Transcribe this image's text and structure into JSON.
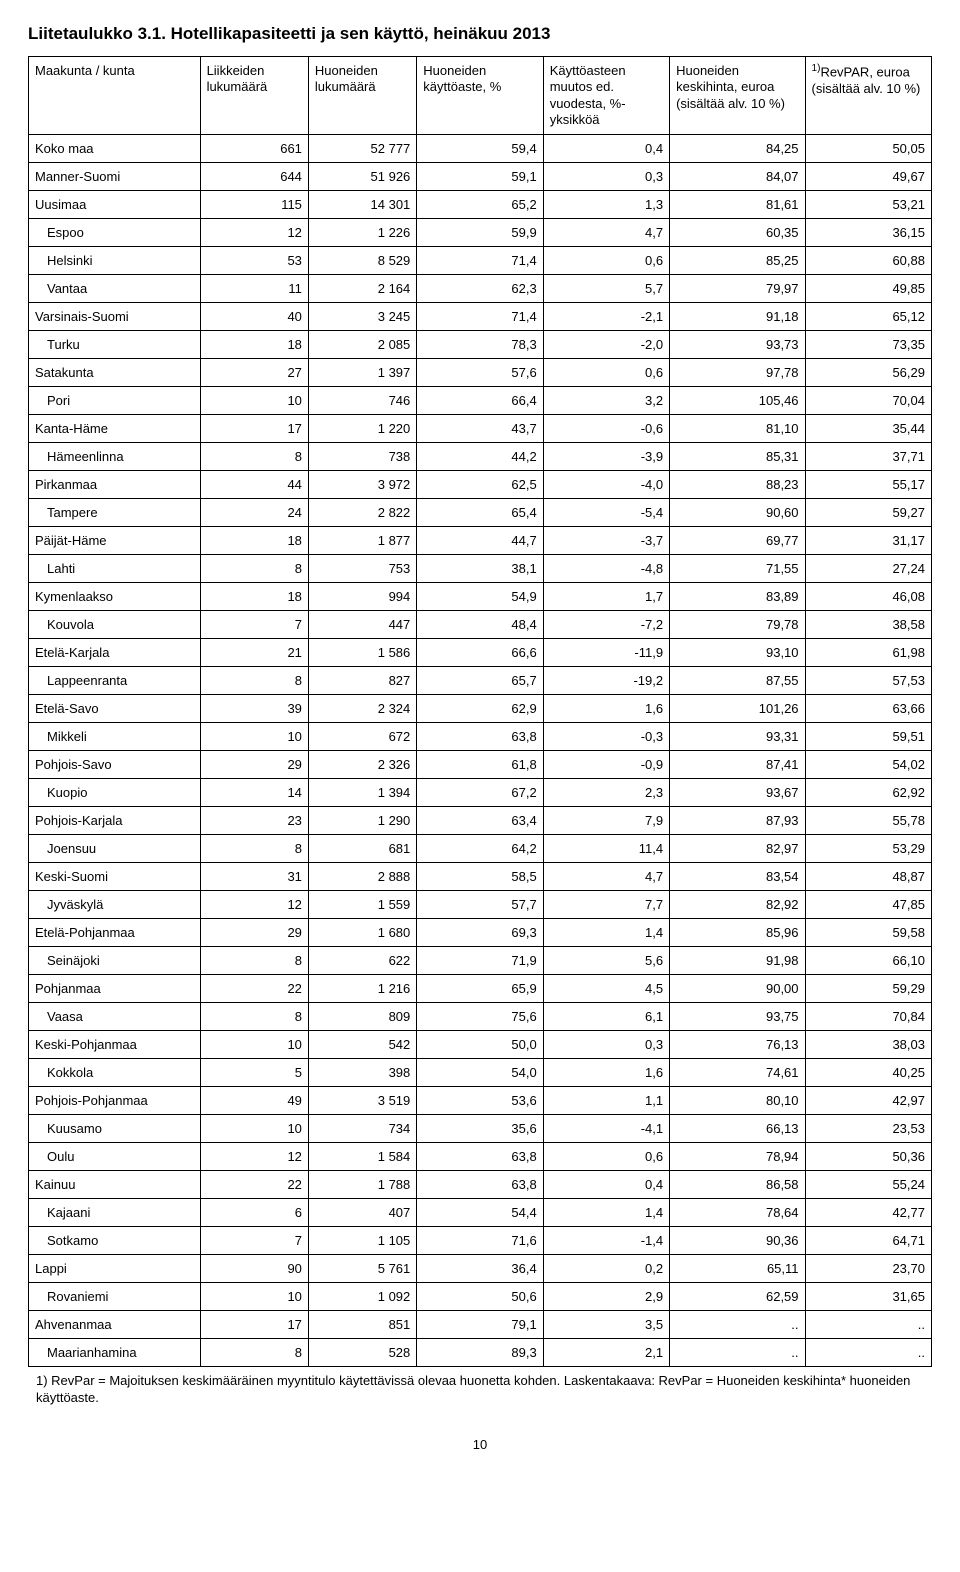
{
  "title": "Liitetaulukko 3.1. Hotellikapasiteetti ja sen käyttö, heinäkuu 2013",
  "columns": [
    "Maakunta / kunta",
    "Liikkeiden lukumäärä",
    "Huoneiden lukumäärä",
    "Huoneiden käyttöaste, %",
    "Käyttöasteen muutos ed. vuodesta, %-yksikköä",
    "Huoneiden keskihinta, euroa (sisältää alv. 10 %)",
    "RevPAR, euroa (sisältää alv. 10 %)"
  ],
  "sup": "1)",
  "rows": [
    {
      "i": 0,
      "c": [
        "Koko maa",
        "661",
        "52 777",
        "59,4",
        "0,4",
        "84,25",
        "50,05"
      ]
    },
    {
      "i": 0,
      "c": [
        "Manner-Suomi",
        "644",
        "51 926",
        "59,1",
        "0,3",
        "84,07",
        "49,67"
      ]
    },
    {
      "i": 0,
      "c": [
        "Uusimaa",
        "115",
        "14 301",
        "65,2",
        "1,3",
        "81,61",
        "53,21"
      ]
    },
    {
      "i": 1,
      "c": [
        "Espoo",
        "12",
        "1 226",
        "59,9",
        "4,7",
        "60,35",
        "36,15"
      ]
    },
    {
      "i": 1,
      "c": [
        "Helsinki",
        "53",
        "8 529",
        "71,4",
        "0,6",
        "85,25",
        "60,88"
      ]
    },
    {
      "i": 1,
      "c": [
        "Vantaa",
        "11",
        "2 164",
        "62,3",
        "5,7",
        "79,97",
        "49,85"
      ]
    },
    {
      "i": 0,
      "c": [
        "Varsinais-Suomi",
        "40",
        "3 245",
        "71,4",
        "-2,1",
        "91,18",
        "65,12"
      ]
    },
    {
      "i": 1,
      "c": [
        "Turku",
        "18",
        "2 085",
        "78,3",
        "-2,0",
        "93,73",
        "73,35"
      ]
    },
    {
      "i": 0,
      "c": [
        "Satakunta",
        "27",
        "1 397",
        "57,6",
        "0,6",
        "97,78",
        "56,29"
      ]
    },
    {
      "i": 1,
      "c": [
        "Pori",
        "10",
        "746",
        "66,4",
        "3,2",
        "105,46",
        "70,04"
      ]
    },
    {
      "i": 0,
      "c": [
        "Kanta-Häme",
        "17",
        "1 220",
        "43,7",
        "-0,6",
        "81,10",
        "35,44"
      ]
    },
    {
      "i": 1,
      "c": [
        "Hämeenlinna",
        "8",
        "738",
        "44,2",
        "-3,9",
        "85,31",
        "37,71"
      ]
    },
    {
      "i": 0,
      "c": [
        "Pirkanmaa",
        "44",
        "3 972",
        "62,5",
        "-4,0",
        "88,23",
        "55,17"
      ]
    },
    {
      "i": 1,
      "c": [
        "Tampere",
        "24",
        "2 822",
        "65,4",
        "-5,4",
        "90,60",
        "59,27"
      ]
    },
    {
      "i": 0,
      "c": [
        "Päijät-Häme",
        "18",
        "1 877",
        "44,7",
        "-3,7",
        "69,77",
        "31,17"
      ]
    },
    {
      "i": 1,
      "c": [
        "Lahti",
        "8",
        "753",
        "38,1",
        "-4,8",
        "71,55",
        "27,24"
      ]
    },
    {
      "i": 0,
      "c": [
        "Kymenlaakso",
        "18",
        "994",
        "54,9",
        "1,7",
        "83,89",
        "46,08"
      ]
    },
    {
      "i": 1,
      "c": [
        "Kouvola",
        "7",
        "447",
        "48,4",
        "-7,2",
        "79,78",
        "38,58"
      ]
    },
    {
      "i": 0,
      "c": [
        "Etelä-Karjala",
        "21",
        "1 586",
        "66,6",
        "-11,9",
        "93,10",
        "61,98"
      ]
    },
    {
      "i": 1,
      "c": [
        "Lappeenranta",
        "8",
        "827",
        "65,7",
        "-19,2",
        "87,55",
        "57,53"
      ]
    },
    {
      "i": 0,
      "c": [
        "Etelä-Savo",
        "39",
        "2 324",
        "62,9",
        "1,6",
        "101,26",
        "63,66"
      ]
    },
    {
      "i": 1,
      "c": [
        "Mikkeli",
        "10",
        "672",
        "63,8",
        "-0,3",
        "93,31",
        "59,51"
      ]
    },
    {
      "i": 0,
      "c": [
        "Pohjois-Savo",
        "29",
        "2 326",
        "61,8",
        "-0,9",
        "87,41",
        "54,02"
      ]
    },
    {
      "i": 1,
      "c": [
        "Kuopio",
        "14",
        "1 394",
        "67,2",
        "2,3",
        "93,67",
        "62,92"
      ]
    },
    {
      "i": 0,
      "c": [
        "Pohjois-Karjala",
        "23",
        "1 290",
        "63,4",
        "7,9",
        "87,93",
        "55,78"
      ]
    },
    {
      "i": 1,
      "c": [
        "Joensuu",
        "8",
        "681",
        "64,2",
        "11,4",
        "82,97",
        "53,29"
      ]
    },
    {
      "i": 0,
      "c": [
        "Keski-Suomi",
        "31",
        "2 888",
        "58,5",
        "4,7",
        "83,54",
        "48,87"
      ]
    },
    {
      "i": 1,
      "c": [
        "Jyväskylä",
        "12",
        "1 559",
        "57,7",
        "7,7",
        "82,92",
        "47,85"
      ]
    },
    {
      "i": 0,
      "c": [
        "Etelä-Pohjanmaa",
        "29",
        "1 680",
        "69,3",
        "1,4",
        "85,96",
        "59,58"
      ]
    },
    {
      "i": 1,
      "c": [
        "Seinäjoki",
        "8",
        "622",
        "71,9",
        "5,6",
        "91,98",
        "66,10"
      ]
    },
    {
      "i": 0,
      "c": [
        "Pohjanmaa",
        "22",
        "1 216",
        "65,9",
        "4,5",
        "90,00",
        "59,29"
      ]
    },
    {
      "i": 1,
      "c": [
        "Vaasa",
        "8",
        "809",
        "75,6",
        "6,1",
        "93,75",
        "70,84"
      ]
    },
    {
      "i": 0,
      "c": [
        "Keski-Pohjanmaa",
        "10",
        "542",
        "50,0",
        "0,3",
        "76,13",
        "38,03"
      ]
    },
    {
      "i": 1,
      "c": [
        "Kokkola",
        "5",
        "398",
        "54,0",
        "1,6",
        "74,61",
        "40,25"
      ]
    },
    {
      "i": 0,
      "c": [
        "Pohjois-Pohjanmaa",
        "49",
        "3 519",
        "53,6",
        "1,1",
        "80,10",
        "42,97"
      ]
    },
    {
      "i": 1,
      "c": [
        "Kuusamo",
        "10",
        "734",
        "35,6",
        "-4,1",
        "66,13",
        "23,53"
      ]
    },
    {
      "i": 1,
      "c": [
        "Oulu",
        "12",
        "1 584",
        "63,8",
        "0,6",
        "78,94",
        "50,36"
      ]
    },
    {
      "i": 0,
      "c": [
        "Kainuu",
        "22",
        "1 788",
        "63,8",
        "0,4",
        "86,58",
        "55,24"
      ]
    },
    {
      "i": 1,
      "c": [
        "Kajaani",
        "6",
        "407",
        "54,4",
        "1,4",
        "78,64",
        "42,77"
      ]
    },
    {
      "i": 1,
      "c": [
        "Sotkamo",
        "7",
        "1 105",
        "71,6",
        "-1,4",
        "90,36",
        "64,71"
      ]
    },
    {
      "i": 0,
      "c": [
        "Lappi",
        "90",
        "5 761",
        "36,4",
        "0,2",
        "65,11",
        "23,70"
      ]
    },
    {
      "i": 1,
      "c": [
        "Rovaniemi",
        "10",
        "1 092",
        "50,6",
        "2,9",
        "62,59",
        "31,65"
      ]
    },
    {
      "i": 0,
      "c": [
        "Ahvenanmaa",
        "17",
        "851",
        "79,1",
        "3,5",
        "..",
        ".."
      ]
    },
    {
      "i": 1,
      "c": [
        "Maarianhamina",
        "8",
        "528",
        "89,3",
        "2,1",
        "..",
        ".."
      ]
    }
  ],
  "footnote": "1) RevPar = Majoituksen keskimääräinen myyntitulo käytettävissä olevaa huonetta kohden. Laskentakaava: RevPar = Huoneiden keskihinta* huoneiden käyttöaste.",
  "pagenum": "10"
}
